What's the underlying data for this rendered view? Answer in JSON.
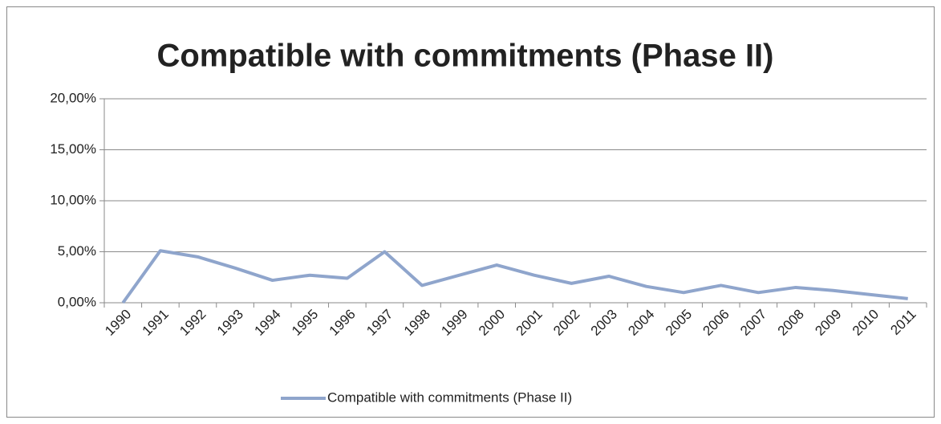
{
  "chart_data": {
    "type": "line",
    "title": "Compatible with commitments (Phase II)",
    "categories": [
      "1990",
      "1991",
      "1992",
      "1993",
      "1994",
      "1995",
      "1996",
      "1997",
      "1998",
      "1999",
      "2000",
      "2001",
      "2002",
      "2003",
      "2004",
      "2005",
      "2006",
      "2007",
      "2008",
      "2009",
      "2010",
      "2011"
    ],
    "series": [
      {
        "name": "Compatible with commitments (Phase II)",
        "color": "#8fa5cc",
        "values": [
          0,
          5.1,
          4.5,
          3.4,
          2.2,
          2.7,
          2.4,
          5.0,
          1.7,
          2.7,
          3.7,
          2.7,
          1.9,
          2.6,
          1.6,
          1.0,
          1.7,
          1.0,
          1.5,
          1.2,
          0.8,
          0.4
        ]
      }
    ],
    "ylim": [
      0,
      20
    ],
    "yticks": [
      {
        "value": 0,
        "label": "0,00%"
      },
      {
        "value": 5,
        "label": "5,00%"
      },
      {
        "value": 10,
        "label": "10,00%"
      },
      {
        "value": 15,
        "label": "15,00%"
      },
      {
        "value": 20,
        "label": "20,00%"
      }
    ],
    "grid": true,
    "legend": "bottom"
  }
}
